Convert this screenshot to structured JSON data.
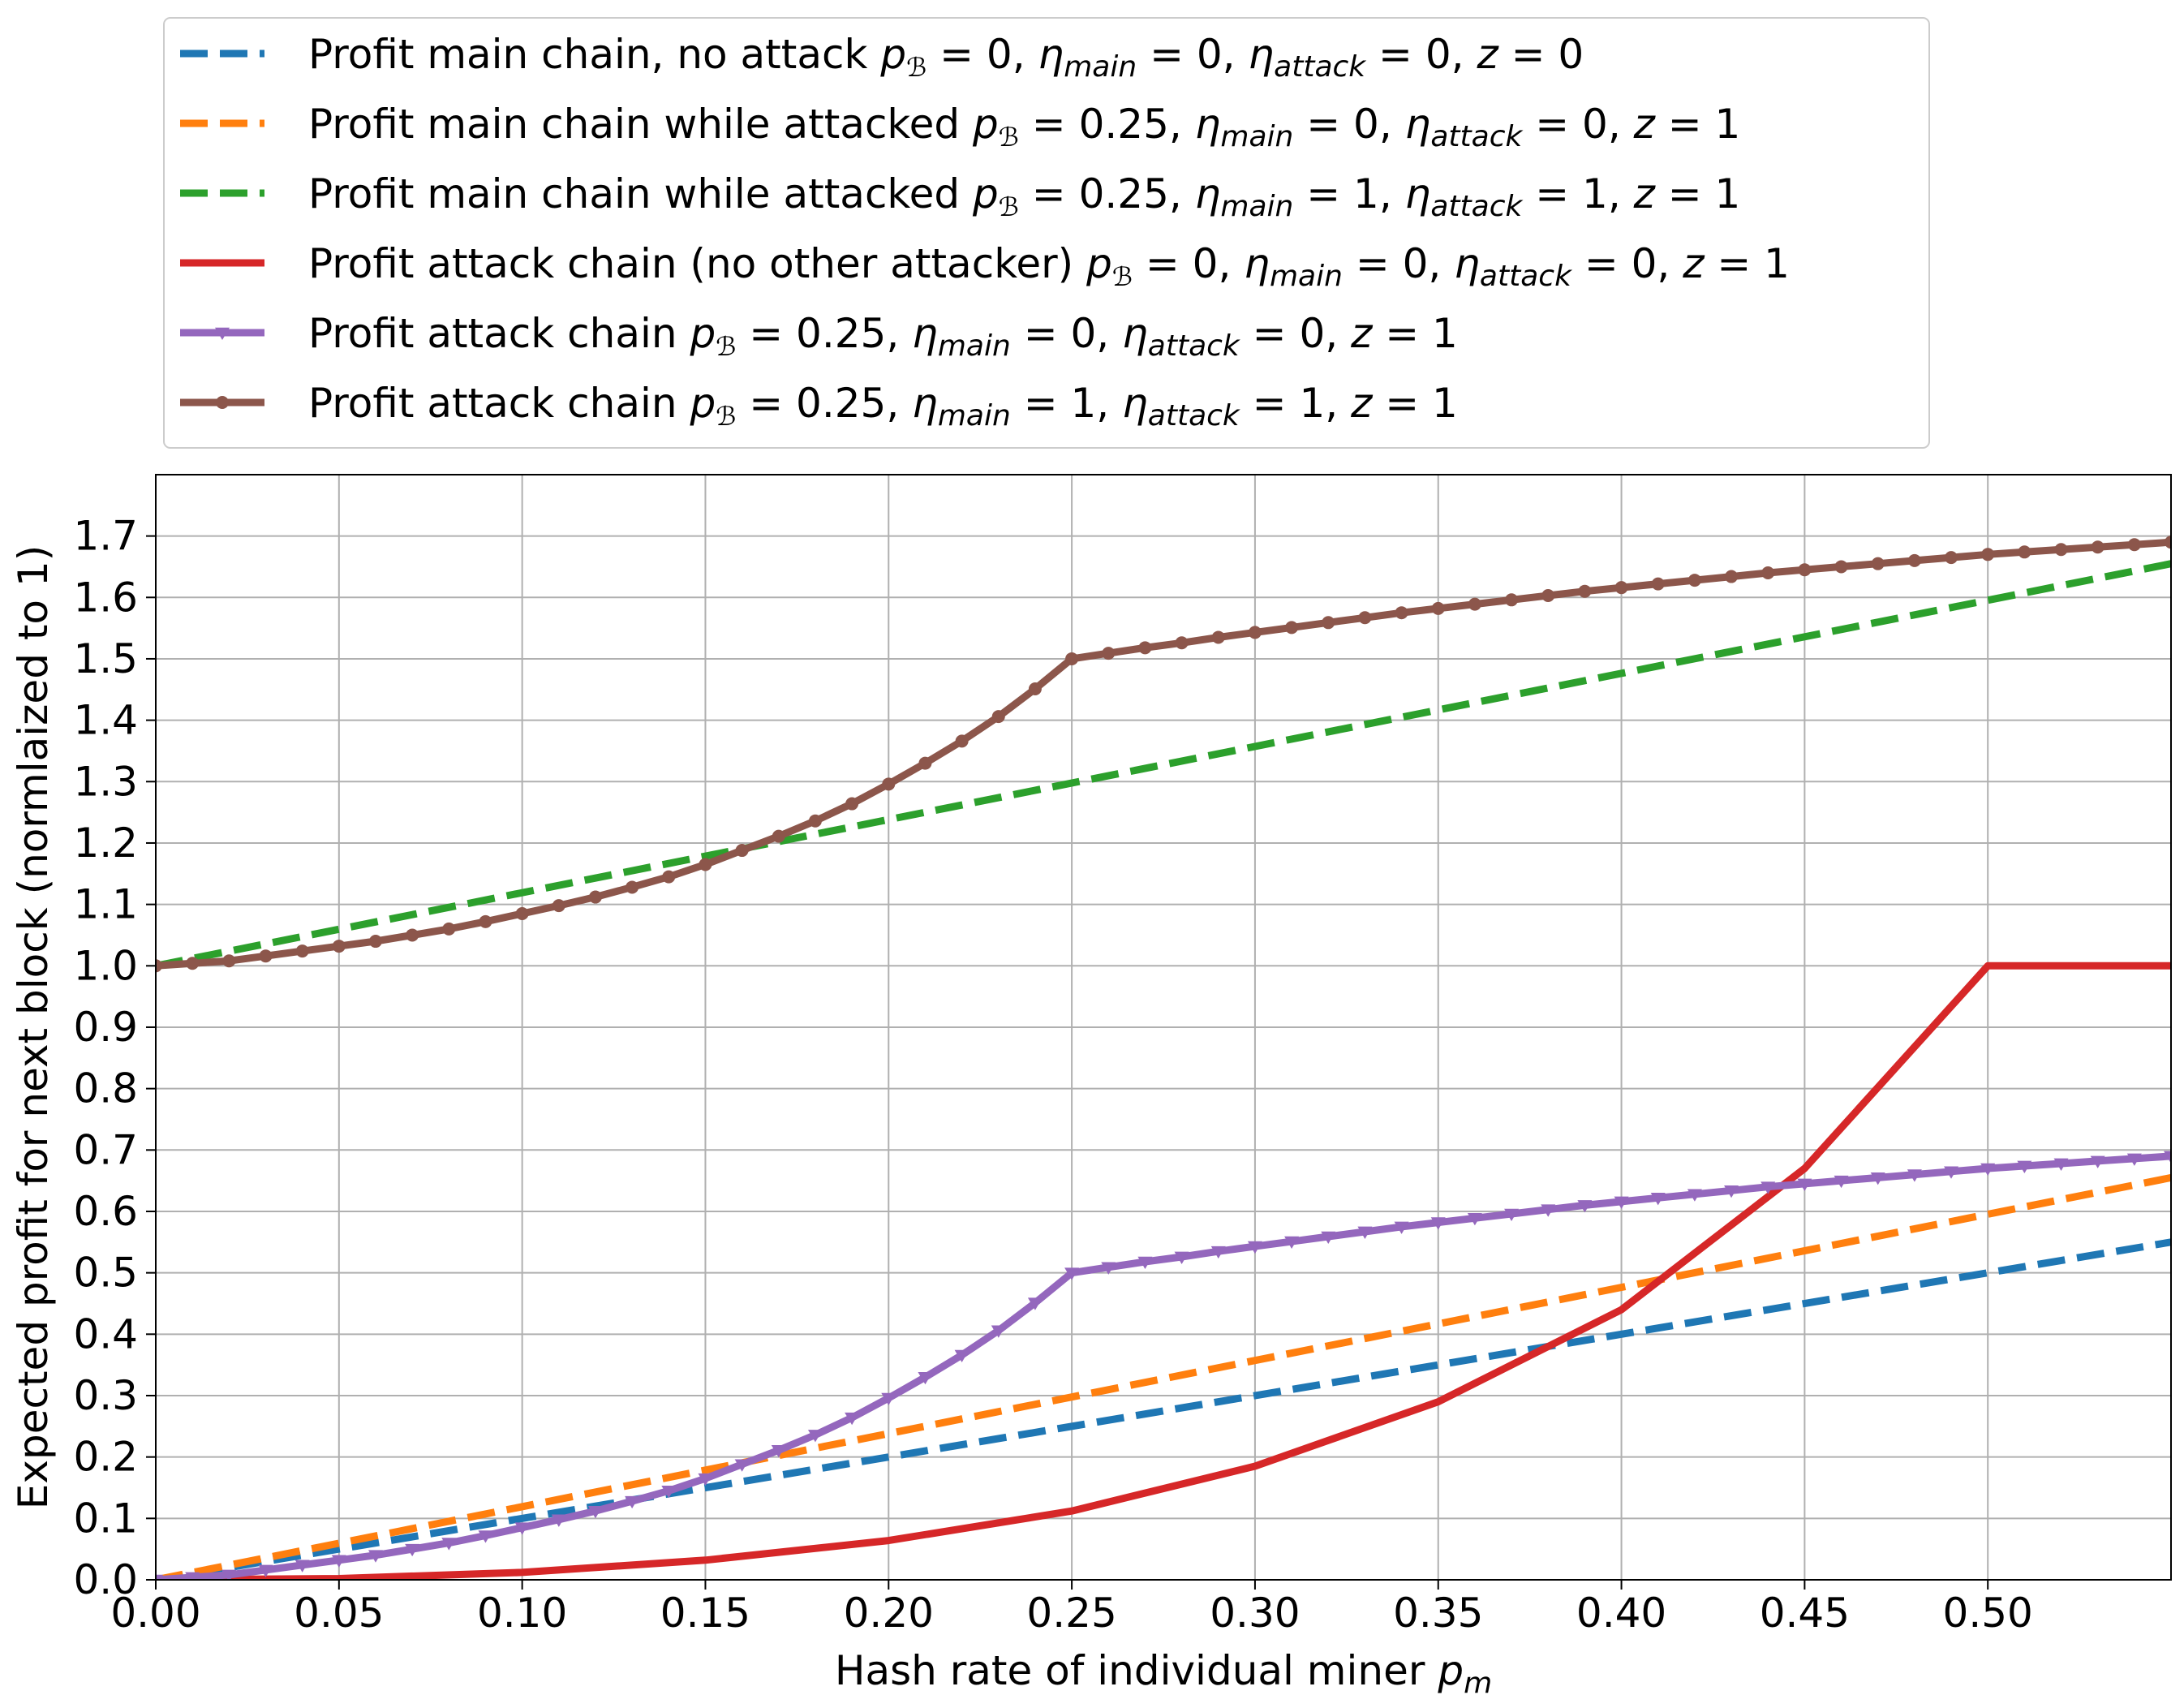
{
  "chart_data": {
    "type": "line",
    "xlabel": "Hash rate of individual miner ",
    "xlabel_math": "p",
    "xlabel_sub": "m",
    "ylabel": "Expected profit for next block (normlaized to 1)",
    "xlim": [
      0,
      0.55
    ],
    "ylim": [
      0,
      1.8
    ],
    "x_ticks": [
      "0.00",
      "0.05",
      "0.10",
      "0.15",
      "0.20",
      "0.25",
      "0.30",
      "0.35",
      "0.40",
      "0.45",
      "0.50"
    ],
    "y_ticks": [
      "0.0",
      "0.1",
      "0.2",
      "0.3",
      "0.4",
      "0.5",
      "0.6",
      "0.7",
      "0.8",
      "0.9",
      "1.0",
      "1.1",
      "1.2",
      "1.3",
      "1.4",
      "1.5",
      "1.6",
      "1.7"
    ],
    "grid": true,
    "legend_position": "above plot",
    "series": [
      {
        "name": "Profit main chain, no attack p_B = 0, η_main = 0, η_attack = 0, z = 0",
        "legend_prefix": "Profit main chain, no attack ",
        "params": {
          "pB": "0",
          "eta_main": "0",
          "eta_attack": "0",
          "z": "0"
        },
        "color": "#1f77b4",
        "style": "dashed",
        "marker": "none",
        "x": [
          0,
          0.55
        ],
        "y": [
          0,
          0.55
        ]
      },
      {
        "name": "Profit main chain while attacked p_B = 0.25, η_main = 0, η_attack = 0, z = 1",
        "legend_prefix": "Profit main chain while attacked ",
        "params": {
          "pB": "0.25",
          "eta_main": "0",
          "eta_attack": "0",
          "z": "1"
        },
        "color": "#ff7f0e",
        "style": "dashed",
        "marker": "none",
        "x": [
          0,
          0.55
        ],
        "y": [
          0,
          0.655
        ]
      },
      {
        "name": "Profit main chain while attacked p_B = 0.25, η_main = 1, η_attack = 1, z = 1",
        "legend_prefix": "Profit main chain while attacked ",
        "params": {
          "pB": "0.25",
          "eta_main": "1",
          "eta_attack": "1",
          "z": "1"
        },
        "color": "#2ca02c",
        "style": "dashed",
        "marker": "none",
        "x": [
          0,
          0.55
        ],
        "y": [
          1.0,
          1.655
        ]
      },
      {
        "name": "Profit attack chain (no other attacker) p_B = 0, η_main = 0, η_attack = 0, z = 1",
        "legend_prefix": "Profit attack chain (no other attacker) ",
        "params": {
          "pB": "0",
          "eta_main": "0",
          "eta_attack": "0",
          "z": "1"
        },
        "color": "#d62728",
        "style": "solid",
        "marker": "none",
        "x": [
          0,
          0.05,
          0.1,
          0.15,
          0.2,
          0.25,
          0.3,
          0.35,
          0.4,
          0.45,
          0.5,
          0.55
        ],
        "y": [
          0,
          0.002,
          0.012,
          0.032,
          0.064,
          0.112,
          0.185,
          0.29,
          0.44,
          0.67,
          1.0,
          1.0
        ]
      },
      {
        "name": "Profit attack chain p_B = 0.25, η_main = 0, η_attack = 0, z = 1",
        "legend_prefix": "Profit attack chain ",
        "params": {
          "pB": "0.25",
          "eta_main": "0",
          "eta_attack": "0",
          "z": "1"
        },
        "color": "#9467bd",
        "style": "solid",
        "marker": "triangle-down",
        "x": [
          0,
          0.01,
          0.02,
          0.03,
          0.04,
          0.05,
          0.06,
          0.07,
          0.08,
          0.09,
          0.1,
          0.11,
          0.12,
          0.13,
          0.14,
          0.15,
          0.16,
          0.17,
          0.18,
          0.19,
          0.2,
          0.21,
          0.22,
          0.23,
          0.24,
          0.25,
          0.26,
          0.27,
          0.28,
          0.29,
          0.3,
          0.31,
          0.32,
          0.33,
          0.34,
          0.35,
          0.36,
          0.37,
          0.38,
          0.39,
          0.4,
          0.41,
          0.42,
          0.43,
          0.44,
          0.45,
          0.46,
          0.47,
          0.48,
          0.49,
          0.5,
          0.51,
          0.52,
          0.53,
          0.54,
          0.55
        ],
        "y": [
          0,
          0.004,
          0.008,
          0.016,
          0.024,
          0.032,
          0.04,
          0.05,
          0.06,
          0.072,
          0.085,
          0.098,
          0.112,
          0.128,
          0.145,
          0.165,
          0.188,
          0.211,
          0.236,
          0.264,
          0.296,
          0.33,
          0.366,
          0.406,
          0.451,
          0.5,
          0.509,
          0.518,
          0.526,
          0.535,
          0.543,
          0.551,
          0.559,
          0.567,
          0.575,
          0.582,
          0.589,
          0.596,
          0.603,
          0.61,
          0.616,
          0.622,
          0.628,
          0.634,
          0.64,
          0.645,
          0.65,
          0.655,
          0.66,
          0.665,
          0.67,
          0.674,
          0.678,
          0.682,
          0.686,
          0.69
        ]
      },
      {
        "name": "Profit attack chain p_B = 0.25, η_main = 1, η_attack = 1, z = 1",
        "legend_prefix": "Profit attack chain ",
        "params": {
          "pB": "0.25",
          "eta_main": "1",
          "eta_attack": "1",
          "z": "1"
        },
        "color": "#8c564b",
        "style": "solid",
        "marker": "circle",
        "x": [
          0,
          0.01,
          0.02,
          0.03,
          0.04,
          0.05,
          0.06,
          0.07,
          0.08,
          0.09,
          0.1,
          0.11,
          0.12,
          0.13,
          0.14,
          0.15,
          0.16,
          0.17,
          0.18,
          0.19,
          0.2,
          0.21,
          0.22,
          0.23,
          0.24,
          0.25,
          0.26,
          0.27,
          0.28,
          0.29,
          0.3,
          0.31,
          0.32,
          0.33,
          0.34,
          0.35,
          0.36,
          0.37,
          0.38,
          0.39,
          0.4,
          0.41,
          0.42,
          0.43,
          0.44,
          0.45,
          0.46,
          0.47,
          0.48,
          0.49,
          0.5,
          0.51,
          0.52,
          0.53,
          0.54,
          0.55
        ],
        "y": [
          1.0,
          1.004,
          1.008,
          1.016,
          1.024,
          1.032,
          1.04,
          1.05,
          1.06,
          1.072,
          1.085,
          1.098,
          1.112,
          1.128,
          1.145,
          1.165,
          1.188,
          1.211,
          1.236,
          1.264,
          1.296,
          1.33,
          1.366,
          1.406,
          1.451,
          1.5,
          1.509,
          1.518,
          1.526,
          1.535,
          1.543,
          1.551,
          1.559,
          1.567,
          1.575,
          1.582,
          1.589,
          1.596,
          1.603,
          1.61,
          1.616,
          1.622,
          1.628,
          1.634,
          1.64,
          1.645,
          1.65,
          1.655,
          1.66,
          1.665,
          1.67,
          1.674,
          1.678,
          1.682,
          1.686,
          1.69
        ]
      }
    ]
  }
}
